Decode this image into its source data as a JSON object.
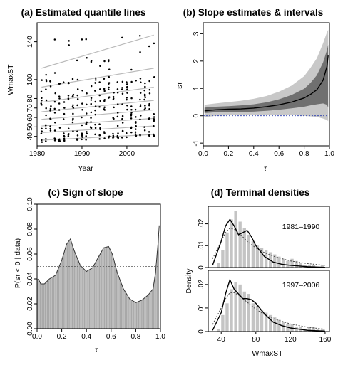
{
  "chart_data": [
    {
      "panel": "a",
      "type": "scatter",
      "title": "(a) Estimated quantile lines",
      "xlabel": "Year",
      "ylabel": "WmaxST",
      "xlim": [
        1980,
        2007
      ],
      "ylim": [
        30,
        160
      ],
      "xticks": [
        1980,
        1990,
        2000
      ],
      "yticks": [
        40,
        50,
        60,
        70,
        80,
        100,
        140
      ],
      "quantile_lines": [
        {
          "x": [
            1981,
            2006
          ],
          "y": [
            36,
            42
          ]
        },
        {
          "x": [
            1981,
            2006
          ],
          "y": [
            44,
            51
          ]
        },
        {
          "x": [
            1981,
            2006
          ],
          "y": [
            51,
            59
          ]
        },
        {
          "x": [
            1981,
            2006
          ],
          "y": [
            58,
            68
          ]
        },
        {
          "x": [
            1981,
            2006
          ],
          "y": [
            66,
            78
          ]
        },
        {
          "x": [
            1981,
            2006
          ],
          "y": [
            76,
            92
          ]
        },
        {
          "x": [
            1981,
            2006
          ],
          "y": [
            92,
            112
          ]
        },
        {
          "x": [
            1981,
            2006
          ],
          "y": [
            112,
            147
          ]
        }
      ],
      "points_per_year": 12,
      "point_seed": 7
    },
    {
      "panel": "b",
      "type": "area",
      "title": "(b) Slope estimates & intervals",
      "xlabel": "τ",
      "ylabel": "sτ",
      "xlim": [
        0,
        1
      ],
      "ylim": [
        -1.1,
        3.4
      ],
      "xticks": [
        0.0,
        0.2,
        0.4,
        0.6,
        0.8,
        1.0
      ],
      "yticks": [
        -1,
        0,
        1,
        2,
        3
      ],
      "x": [
        0.01,
        0.1,
        0.2,
        0.3,
        0.4,
        0.5,
        0.6,
        0.7,
        0.8,
        0.85,
        0.9,
        0.95,
        0.98,
        0.99
      ],
      "estimate": [
        0.18,
        0.22,
        0.24,
        0.25,
        0.28,
        0.33,
        0.4,
        0.5,
        0.65,
        0.78,
        0.95,
        1.3,
        1.8,
        2.2
      ],
      "inner_lower": [
        0.1,
        0.13,
        0.14,
        0.14,
        0.15,
        0.18,
        0.22,
        0.27,
        0.33,
        0.38,
        0.42,
        0.45,
        0.4,
        0.3
      ],
      "inner_upper": [
        0.3,
        0.33,
        0.35,
        0.38,
        0.42,
        0.49,
        0.6,
        0.76,
        0.99,
        1.2,
        1.48,
        1.95,
        2.4,
        2.6
      ],
      "outer_lower": [
        -0.05,
        0.0,
        0.02,
        0.02,
        0.02,
        0.03,
        0.04,
        0.03,
        0.0,
        -0.02,
        -0.04,
        -0.1,
        -0.15,
        -0.2
      ],
      "outer_upper": [
        0.4,
        0.45,
        0.5,
        0.55,
        0.62,
        0.72,
        0.88,
        1.1,
        1.45,
        1.75,
        2.1,
        2.65,
        3.05,
        3.15
      ],
      "reference_line": 0
    },
    {
      "panel": "c",
      "type": "bar",
      "title": "(c) Sign of slope",
      "xlabel": "τ",
      "ylabel": "P(sτ < 0 | data)",
      "xlim": [
        0,
        1
      ],
      "ylim": [
        0,
        0.1
      ],
      "xticks": [
        0.0,
        0.2,
        0.4,
        0.6,
        0.8,
        1.0
      ],
      "yticks": [
        0.0,
        0.02,
        0.04,
        0.06,
        0.08,
        0.1
      ],
      "x": [
        0.01,
        0.03,
        0.06,
        0.1,
        0.15,
        0.2,
        0.24,
        0.27,
        0.3,
        0.35,
        0.4,
        0.45,
        0.5,
        0.54,
        0.58,
        0.61,
        0.65,
        0.7,
        0.75,
        0.8,
        0.85,
        0.9,
        0.94,
        0.96,
        0.98,
        0.99
      ],
      "values": [
        0.04,
        0.036,
        0.036,
        0.04,
        0.043,
        0.055,
        0.068,
        0.072,
        0.063,
        0.051,
        0.046,
        0.049,
        0.058,
        0.065,
        0.066,
        0.06,
        0.045,
        0.032,
        0.024,
        0.021,
        0.023,
        0.027,
        0.032,
        0.045,
        0.068,
        0.083
      ],
      "reference_line": 0.05
    },
    {
      "panel": "d",
      "type": "bar",
      "title": "(d) Terminal densities",
      "xlabel": "WmaxST",
      "ylabel": "Density",
      "xlim": [
        25,
        165
      ],
      "xticks": [
        40,
        80,
        120,
        160
      ],
      "subpanels": [
        {
          "label": "1981–1990",
          "ylim": [
            0,
            0.028
          ],
          "yticks": [
            0,
            0.01,
            0.02
          ],
          "ytick_labels": [
            "0",
            ".01",
            ".02"
          ],
          "bin_start": 35,
          "bin_width": 5,
          "hist": [
            0.002,
            0.008,
            0.016,
            0.022,
            0.026,
            0.021,
            0.018,
            0.015,
            0.012,
            0.01,
            0.009,
            0.008,
            0.007,
            0.006,
            0.005,
            0.004,
            0.003,
            0.004,
            0.003,
            0.002,
            0.001,
            0.001,
            0.001,
            0.0,
            0.001
          ],
          "solid": {
            "x": [
              30,
              40,
              45,
              50,
              55,
              60,
              65,
              70,
              75,
              80,
              90,
              100,
              110,
              120,
              140,
              160
            ],
            "y": [
              0.001,
              0.012,
              0.019,
              0.022,
              0.019,
              0.015,
              0.016,
              0.017,
              0.014,
              0.01,
              0.005,
              0.0025,
              0.0015,
              0.001,
              0.0004,
              0.0001
            ]
          },
          "dotted": {
            "x": [
              30,
              40,
              45,
              50,
              55,
              60,
              70,
              80,
              90,
              100,
              120,
              140,
              160
            ],
            "y": [
              0.004,
              0.012,
              0.016,
              0.018,
              0.0175,
              0.016,
              0.012,
              0.009,
              0.0068,
              0.0052,
              0.003,
              0.0018,
              0.001
            ]
          }
        },
        {
          "label": "1997–2006",
          "ylim": [
            0,
            0.026
          ],
          "yticks": [
            0,
            0.01,
            0.02
          ],
          "ytick_labels": [
            "0",
            ".01",
            ".02"
          ],
          "bin_start": 35,
          "bin_width": 5,
          "hist": [
            0.001,
            0.007,
            0.012,
            0.018,
            0.021,
            0.02,
            0.017,
            0.016,
            0.012,
            0.011,
            0.009,
            0.008,
            0.007,
            0.006,
            0.005,
            0.004,
            0.003,
            0.003,
            0.002,
            0.002,
            0.001,
            0.002,
            0.002,
            0.001,
            0.001
          ],
          "solid": {
            "x": [
              30,
              40,
              45,
              50,
              55,
              60,
              65,
              70,
              75,
              80,
              90,
              100,
              110,
              120,
              140,
              160
            ],
            "y": [
              0.0005,
              0.008,
              0.016,
              0.022,
              0.018,
              0.016,
              0.014,
              0.014,
              0.0135,
              0.012,
              0.0075,
              0.004,
              0.0025,
              0.0015,
              0.0005,
              0.0002
            ]
          },
          "dotted": {
            "x": [
              30,
              40,
              45,
              50,
              55,
              60,
              70,
              80,
              90,
              100,
              120,
              140,
              160
            ],
            "y": [
              0.003,
              0.01,
              0.014,
              0.0165,
              0.0165,
              0.0155,
              0.0125,
              0.0095,
              0.0072,
              0.0055,
              0.0032,
              0.0018,
              0.001
            ]
          }
        }
      ]
    }
  ]
}
